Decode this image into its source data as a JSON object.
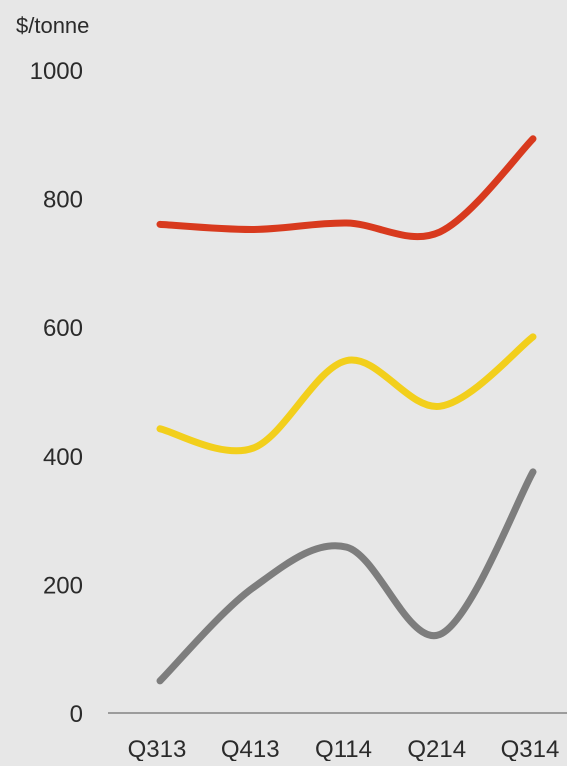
{
  "chart_data": {
    "type": "line",
    "title": "",
    "ylabel": "$/tonne",
    "xlabel": "",
    "categories": [
      "Q313",
      "Q413",
      "Q114",
      "Q214",
      "Q314"
    ],
    "ylim": [
      0,
      1000
    ],
    "yticks": [
      0,
      200,
      400,
      600,
      800,
      1000
    ],
    "grid": false,
    "legend": "none",
    "series": [
      {
        "color": "#d83a1e",
        "values": [
          760,
          752,
          762,
          748,
          893
        ]
      },
      {
        "color": "#f2cf1c",
        "values": [
          442,
          412,
          548,
          477,
          585
        ]
      },
      {
        "color": "#7d7d7d",
        "values": [
          50,
          195,
          258,
          122,
          375
        ]
      }
    ]
  }
}
